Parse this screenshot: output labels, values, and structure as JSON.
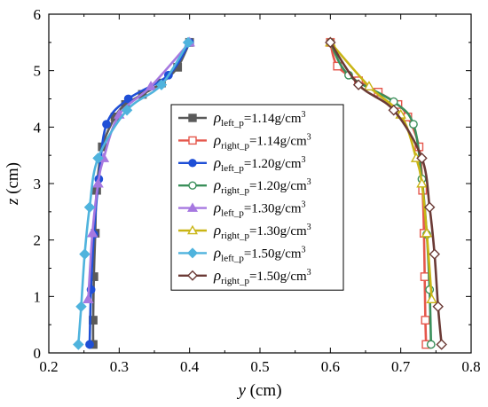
{
  "chart_data": {
    "type": "line",
    "xlabel": {
      "var": "y",
      "unit": " (cm)"
    },
    "ylabel": {
      "var": "z",
      "unit": " (cm)"
    },
    "xlim": [
      0.2,
      0.8
    ],
    "ylim": [
      0,
      6
    ],
    "xticks": [
      "0.2",
      "0.3",
      "0.4",
      "0.5",
      "0.6",
      "0.7",
      "0.8"
    ],
    "yticks": [
      "0",
      "1",
      "2",
      "3",
      "4",
      "5",
      "6"
    ],
    "grid": false,
    "legend_position": "center",
    "series": [
      {
        "name": "ρleft_p=1.14g/cm3",
        "symbol": "ρ",
        "sub": "left_p",
        "value_text": "=1.14g/cm",
        "sup": "3",
        "color": "#5a5a5a",
        "marker": "square",
        "filled": true,
        "points": [
          [
            0.263,
            0.15
          ],
          [
            0.263,
            0.58
          ],
          [
            0.264,
            1.35
          ],
          [
            0.266,
            2.12
          ],
          [
            0.268,
            2.88
          ],
          [
            0.276,
            3.65
          ],
          [
            0.294,
            4.18
          ],
          [
            0.309,
            4.4
          ],
          [
            0.333,
            4.58
          ],
          [
            0.36,
            4.78
          ],
          [
            0.383,
            5.06
          ],
          [
            0.4,
            5.5
          ]
        ]
      },
      {
        "name": "ρright_p=1.14g/cm3",
        "symbol": "ρ",
        "sub": "right_p",
        "value_text": "=1.14g/cm",
        "sup": "3",
        "color": "#e5574c",
        "marker": "square",
        "filled": false,
        "points": [
          [
            0.736,
            0.15
          ],
          [
            0.735,
            0.58
          ],
          [
            0.734,
            1.35
          ],
          [
            0.733,
            2.12
          ],
          [
            0.731,
            2.88
          ],
          [
            0.726,
            3.65
          ],
          [
            0.71,
            4.18
          ],
          [
            0.696,
            4.4
          ],
          [
            0.668,
            4.62
          ],
          [
            0.64,
            4.82
          ],
          [
            0.61,
            5.08
          ],
          [
            0.6,
            5.5
          ]
        ]
      },
      {
        "name": "ρleft_p=1.20g/cm3",
        "symbol": "ρ",
        "sub": "left_p",
        "value_text": "=1.20g/cm",
        "sup": "3",
        "color": "#1f4fd6",
        "marker": "circle",
        "filled": true,
        "points": [
          [
            0.258,
            0.15
          ],
          [
            0.26,
            1.12
          ],
          [
            0.264,
            2.1
          ],
          [
            0.271,
            3.08
          ],
          [
            0.282,
            4.05
          ],
          [
            0.313,
            4.5
          ],
          [
            0.37,
            4.92
          ],
          [
            0.4,
            5.5
          ]
        ]
      },
      {
        "name": "ρright_p=1.20g/cm3",
        "symbol": "ρ",
        "sub": "right_p",
        "value_text": "=1.20g/cm",
        "sup": "3",
        "color": "#3a8f5a",
        "marker": "circle",
        "filled": false,
        "points": [
          [
            0.743,
            0.15
          ],
          [
            0.741,
            1.12
          ],
          [
            0.737,
            2.1
          ],
          [
            0.73,
            3.08
          ],
          [
            0.718,
            4.05
          ],
          [
            0.69,
            4.45
          ],
          [
            0.626,
            4.92
          ],
          [
            0.6,
            5.5
          ]
        ]
      },
      {
        "name": "ρleft_p=1.30g/cm3",
        "symbol": "ρ",
        "sub": "left_p",
        "value_text": "=1.30g/cm",
        "sup": "3",
        "color": "#a678e0",
        "marker": "triangle",
        "filled": true,
        "points": [
          [
            0.256,
            0.95
          ],
          [
            0.262,
            2.12
          ],
          [
            0.27,
            3.0
          ],
          [
            0.278,
            3.45
          ],
          [
            0.3,
            4.22
          ],
          [
            0.345,
            4.72
          ],
          [
            0.4,
            5.5
          ]
        ]
      },
      {
        "name": "ρright_p=1.30g/cm3",
        "symbol": "ρ",
        "sub": "right_p",
        "value_text": "=1.30g/cm",
        "sup": "3",
        "color": "#c9b515",
        "marker": "triangle",
        "filled": false,
        "points": [
          [
            0.744,
            0.95
          ],
          [
            0.737,
            2.12
          ],
          [
            0.73,
            3.0
          ],
          [
            0.722,
            3.45
          ],
          [
            0.7,
            4.22
          ],
          [
            0.655,
            4.72
          ],
          [
            0.6,
            5.5
          ]
        ]
      },
      {
        "name": "ρleft_p=1.50g/cm3",
        "symbol": "ρ",
        "sub": "left_p",
        "value_text": "=1.50g/cm",
        "sup": "3",
        "color": "#4fb3dd",
        "marker": "diamond",
        "filled": true,
        "points": [
          [
            0.242,
            0.15
          ],
          [
            0.246,
            0.82
          ],
          [
            0.251,
            1.75
          ],
          [
            0.258,
            2.58
          ],
          [
            0.27,
            3.45
          ],
          [
            0.311,
            4.3
          ],
          [
            0.36,
            4.75
          ],
          [
            0.398,
            5.5
          ]
        ]
      },
      {
        "name": "ρright_p=1.50g/cm3",
        "symbol": "ρ",
        "sub": "right_p",
        "value_text": "=1.50g/cm",
        "sup": "3",
        "color": "#6b3a35",
        "marker": "diamond",
        "filled": false,
        "points": [
          [
            0.758,
            0.15
          ],
          [
            0.753,
            0.82
          ],
          [
            0.748,
            1.75
          ],
          [
            0.741,
            2.58
          ],
          [
            0.73,
            3.45
          ],
          [
            0.69,
            4.3
          ],
          [
            0.64,
            4.75
          ],
          [
            0.6,
            5.5
          ]
        ]
      }
    ]
  }
}
